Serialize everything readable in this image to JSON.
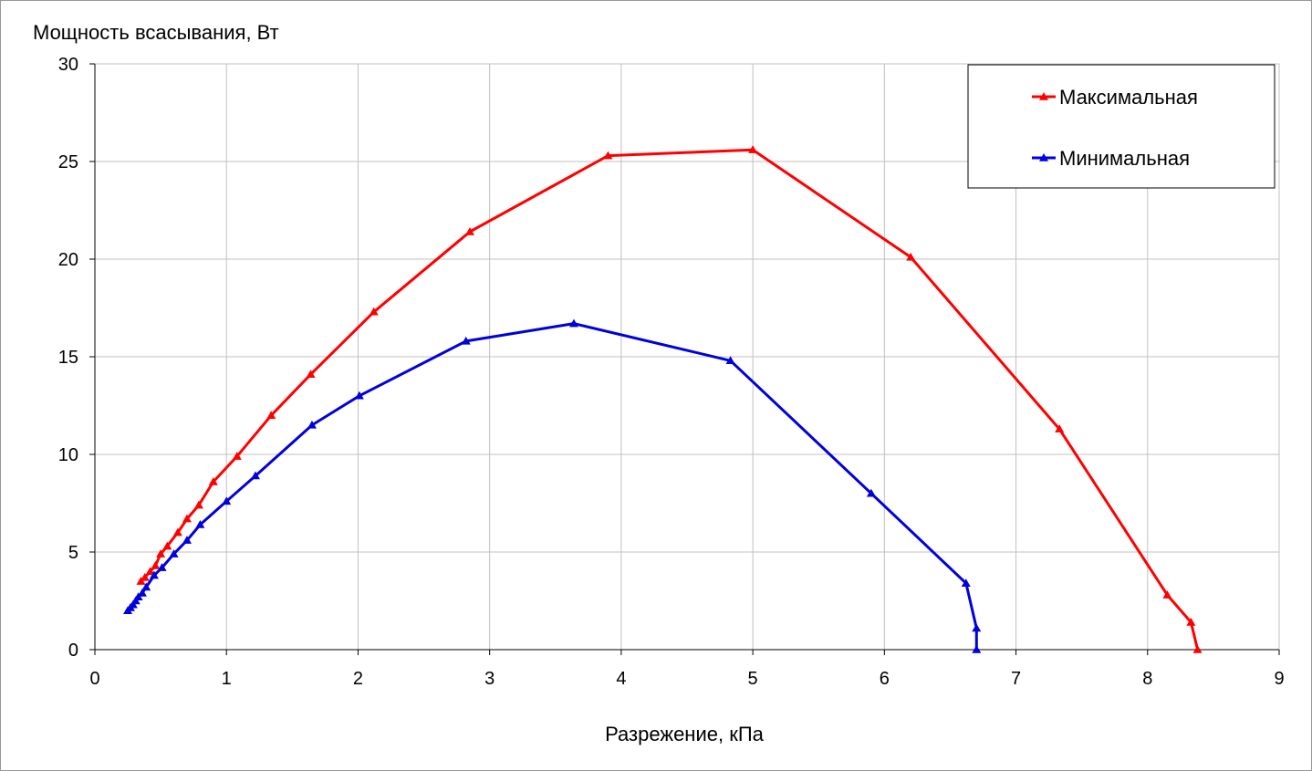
{
  "chart_data": {
    "type": "line",
    "title": "",
    "ylabel": "Мощность всасывания, Вт",
    "xlabel": "Разрежение, кПа",
    "xlim": [
      0,
      9
    ],
    "ylim": [
      0,
      30
    ],
    "x_ticks": [
      "0",
      "1",
      "2",
      "3",
      "4",
      "5",
      "6",
      "7",
      "8",
      "9"
    ],
    "y_ticks": [
      "0",
      "5",
      "10",
      "15",
      "20",
      "25",
      "30"
    ],
    "grid": true,
    "legend_position": "top-right",
    "series": [
      {
        "name": "Максимальная",
        "color": "#ff0000",
        "marker": "triangle",
        "points": [
          [
            0.35,
            3.5
          ],
          [
            0.38,
            3.7
          ],
          [
            0.42,
            4.0
          ],
          [
            0.46,
            4.3
          ],
          [
            0.5,
            4.9
          ],
          [
            0.55,
            5.3
          ],
          [
            0.63,
            6.0
          ],
          [
            0.7,
            6.7
          ],
          [
            0.79,
            7.4
          ],
          [
            0.9,
            8.6
          ],
          [
            1.08,
            9.9
          ],
          [
            1.34,
            12.0
          ],
          [
            1.64,
            14.1
          ],
          [
            2.12,
            17.3
          ],
          [
            2.85,
            21.4
          ],
          [
            3.9,
            25.3
          ],
          [
            5.0,
            25.6
          ],
          [
            6.2,
            20.1
          ],
          [
            7.33,
            11.3
          ],
          [
            8.15,
            2.8
          ],
          [
            8.33,
            1.4
          ],
          [
            8.38,
            0.0
          ]
        ]
      },
      {
        "name": "Минимальная",
        "color": "#0000dd",
        "marker": "triangle",
        "points": [
          [
            0.25,
            2.0
          ],
          [
            0.27,
            2.15
          ],
          [
            0.29,
            2.3
          ],
          [
            0.31,
            2.5
          ],
          [
            0.33,
            2.7
          ],
          [
            0.36,
            2.9
          ],
          [
            0.39,
            3.2
          ],
          [
            0.45,
            3.8
          ],
          [
            0.51,
            4.2
          ],
          [
            0.6,
            4.9
          ],
          [
            0.7,
            5.6
          ],
          [
            0.8,
            6.4
          ],
          [
            1.0,
            7.6
          ],
          [
            1.22,
            8.9
          ],
          [
            1.65,
            11.5
          ],
          [
            2.01,
            13.0
          ],
          [
            2.82,
            15.8
          ],
          [
            3.64,
            16.7
          ],
          [
            4.83,
            14.8
          ],
          [
            5.9,
            8.0
          ],
          [
            6.62,
            3.4
          ],
          [
            6.7,
            1.1
          ],
          [
            6.7,
            0.0
          ]
        ]
      }
    ]
  }
}
